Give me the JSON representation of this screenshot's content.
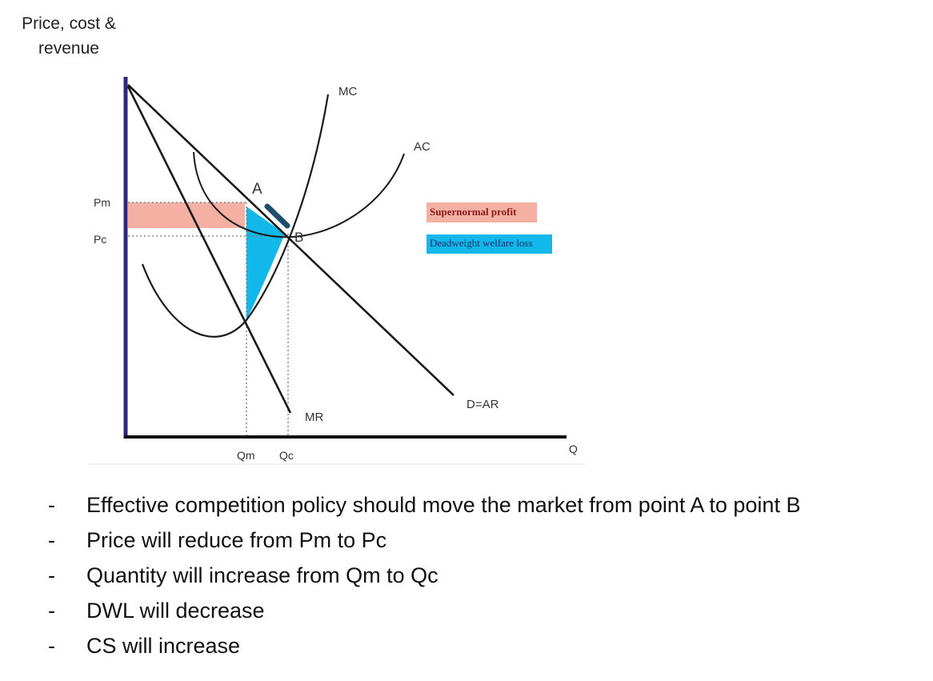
{
  "axes": {
    "y_title_line1": "Price, cost &",
    "y_title_line2": "revenue",
    "x_title": "Q",
    "price_labels": [
      "Pm",
      "Pc"
    ],
    "quantity_labels": [
      "Qm",
      "Qc"
    ]
  },
  "curves": {
    "mc": "MC",
    "ac": "AC",
    "mr": "MR",
    "demand": "D=AR"
  },
  "points": {
    "a": "A",
    "b": "B"
  },
  "legend": {
    "profit_label": "Supernormal profit",
    "dwl_label": "Deadweight welfare loss",
    "profit_color": "#f4b1a3",
    "dwl_color": "#12b8ea"
  },
  "bullets": [
    "Effective competition policy should move the market from point A to point B",
    "Price will reduce from Pm to Pc",
    "Quantity will increase from Qm to Qc",
    "DWL will decrease",
    "CS will increase"
  ],
  "bullet_marker": "-"
}
